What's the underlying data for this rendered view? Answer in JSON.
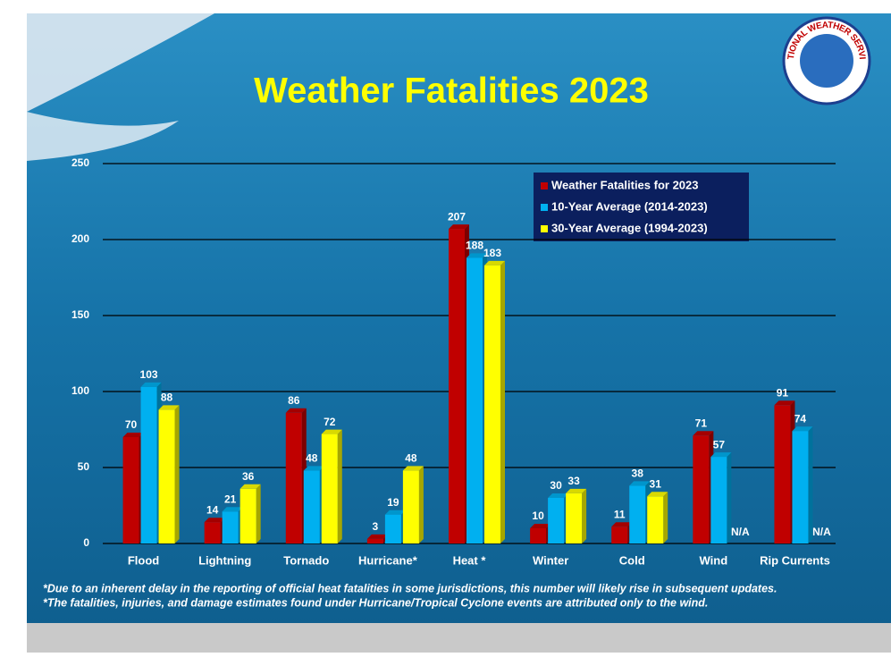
{
  "chart_data": {
    "type": "bar",
    "title": "Weather Fatalities 2023",
    "logo_text": "NATIONAL WEATHER SERVICE",
    "categories": [
      "Flood",
      "Lightning",
      "Tornado",
      "Hurricane*",
      "Heat *",
      "Winter",
      "Cold",
      "Wind",
      "Rip Currents"
    ],
    "series": [
      {
        "name": "Weather Fatalities for 2023",
        "color": "#c00000",
        "values": [
          70,
          14,
          86,
          3,
          207,
          10,
          11,
          71,
          91
        ]
      },
      {
        "name": "10-Year Average (2014-2023)",
        "color": "#00b0f0",
        "values": [
          103,
          21,
          48,
          19,
          188,
          30,
          38,
          57,
          74
        ]
      },
      {
        "name": "30-Year Average (1994-2023)",
        "color": "#ffff00",
        "values": [
          88,
          36,
          72,
          48,
          183,
          33,
          31,
          null,
          null
        ],
        "value_labels": [
          "88",
          "36",
          "72",
          "48",
          "183",
          "33",
          "31",
          "N/A",
          "N/A"
        ]
      }
    ],
    "ylim": [
      0,
      250
    ],
    "yticks": [
      0,
      50,
      100,
      150,
      200,
      250
    ],
    "grid": true,
    "notes": [
      "*Due to an inherent delay in the reporting of official heat fatalities in some jurisdictions, this number will likely rise in subsequent updates.",
      "*The fatalities, injuries, and damage estimates found under Hurricane/Tropical Cyclone events are attributed only to the wind."
    ]
  }
}
